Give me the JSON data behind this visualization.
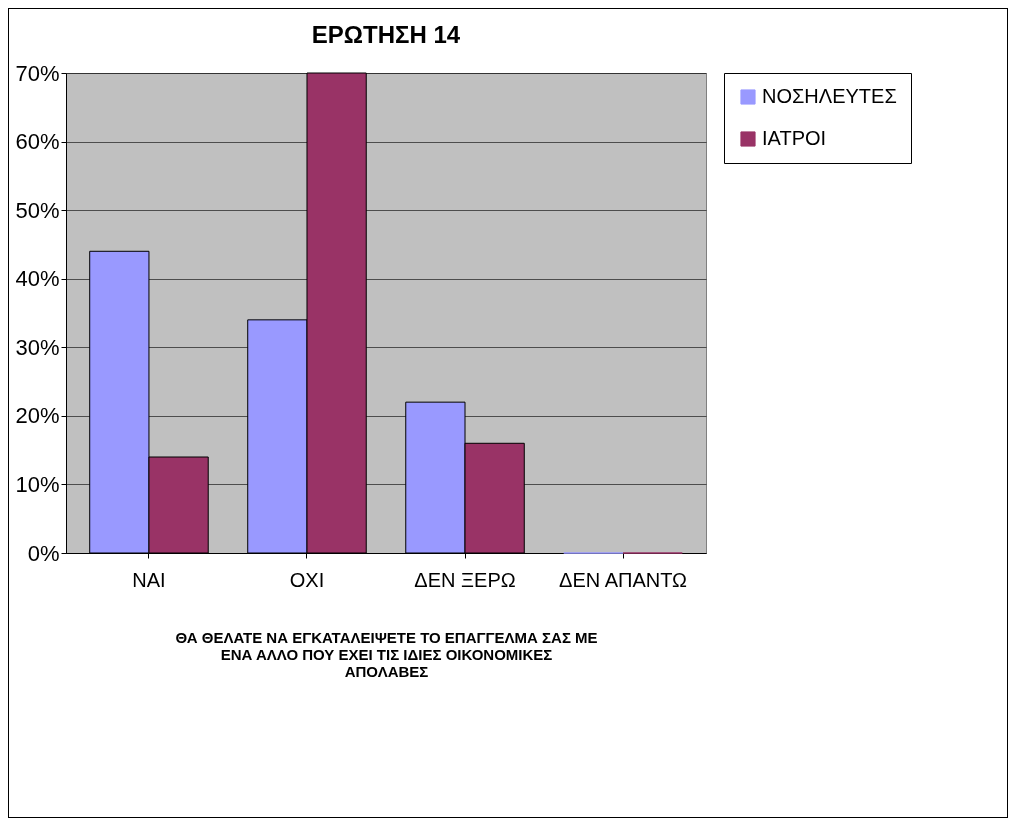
{
  "chart_data": {
    "type": "bar",
    "title": "ΕΡΩΤΗΣΗ 14",
    "xlabel": "ΘΑ ΘΕΛΑΤΕ ΝΑ ΕΓΚΑΤΑΛΕΙΨΕΤΕ ΤΟ ΕΠΑΓΓΕΛΜΑ ΣΑΣ ΜΕ ΕΝΑ ΑΛΛΟ ΠΟΥ ΕΧΕΙ ΤΙΣ ΙΔΙΕΣ ΟΙΚΟΝΟΜΙΚΕΣ ΑΠΟΛΑΒΕΣ",
    "categories": [
      "ΝΑΙ",
      "ΟΧΙ",
      "ΔΕΝ ΞΕΡΩ",
      "ΔΕΝ ΑΠΑΝΤΩ"
    ],
    "series": [
      {
        "name": "ΝΟΣΗΛΕΥΤΕΣ",
        "color": "#9999ff",
        "values": [
          44,
          34,
          22,
          0
        ]
      },
      {
        "name": "ΙΑΤΡΟΙ",
        "color": "#993366",
        "values": [
          14,
          70,
          16,
          0
        ]
      }
    ],
    "ylim": [
      0,
      70
    ],
    "yticks": [
      {
        "value": 0,
        "label": "0%"
      },
      {
        "value": 10,
        "label": "10%"
      },
      {
        "value": 20,
        "label": "20%"
      },
      {
        "value": 30,
        "label": "30%"
      },
      {
        "value": 40,
        "label": "40%"
      },
      {
        "value": 50,
        "label": "50%"
      },
      {
        "value": 60,
        "label": "60%"
      },
      {
        "value": 70,
        "label": "70%"
      }
    ],
    "grid": "y",
    "legend": "right"
  }
}
